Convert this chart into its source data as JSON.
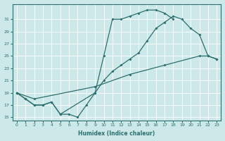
{
  "xlabel": "Humidex (Indice chaleur)",
  "bg_color": "#cce8e8",
  "grid_color": "#ffffff",
  "line_color": "#2d6e6e",
  "xlim": [
    -0.5,
    23.5
  ],
  "ylim": [
    14.5,
    33.5
  ],
  "xticks": [
    0,
    1,
    2,
    3,
    4,
    5,
    6,
    7,
    8,
    9,
    10,
    11,
    12,
    13,
    14,
    15,
    16,
    17,
    18,
    19,
    20,
    21,
    22,
    23
  ],
  "yticks": [
    15,
    17,
    19,
    21,
    23,
    25,
    27,
    29,
    31
  ],
  "line1_x": [
    0,
    1,
    2,
    3,
    4,
    5,
    6,
    7,
    8,
    9,
    10,
    11,
    12,
    13,
    14,
    15,
    16,
    17,
    18
  ],
  "line1_y": [
    19,
    18,
    17,
    17,
    17.5,
    15.5,
    15.5,
    15,
    17,
    19,
    25,
    31,
    31,
    31.5,
    32,
    32.5,
    32.5,
    32,
    31
  ],
  "line2_x": [
    0,
    2,
    9,
    13,
    17,
    21,
    22,
    23
  ],
  "line2_y": [
    19,
    18,
    20,
    22,
    23.5,
    25,
    25,
    24.5
  ],
  "line3_x": [
    0,
    1,
    2,
    3,
    4,
    5,
    9,
    10,
    11,
    12,
    13,
    14,
    15,
    16,
    17,
    18,
    19,
    20,
    21,
    22,
    23
  ],
  "line3_y": [
    19,
    18,
    17,
    17,
    17.5,
    15.5,
    19,
    21,
    22.5,
    23.5,
    24.5,
    25.5,
    27.5,
    29.5,
    30.5,
    31.5,
    31,
    29.5,
    28.5,
    25,
    24.5
  ]
}
